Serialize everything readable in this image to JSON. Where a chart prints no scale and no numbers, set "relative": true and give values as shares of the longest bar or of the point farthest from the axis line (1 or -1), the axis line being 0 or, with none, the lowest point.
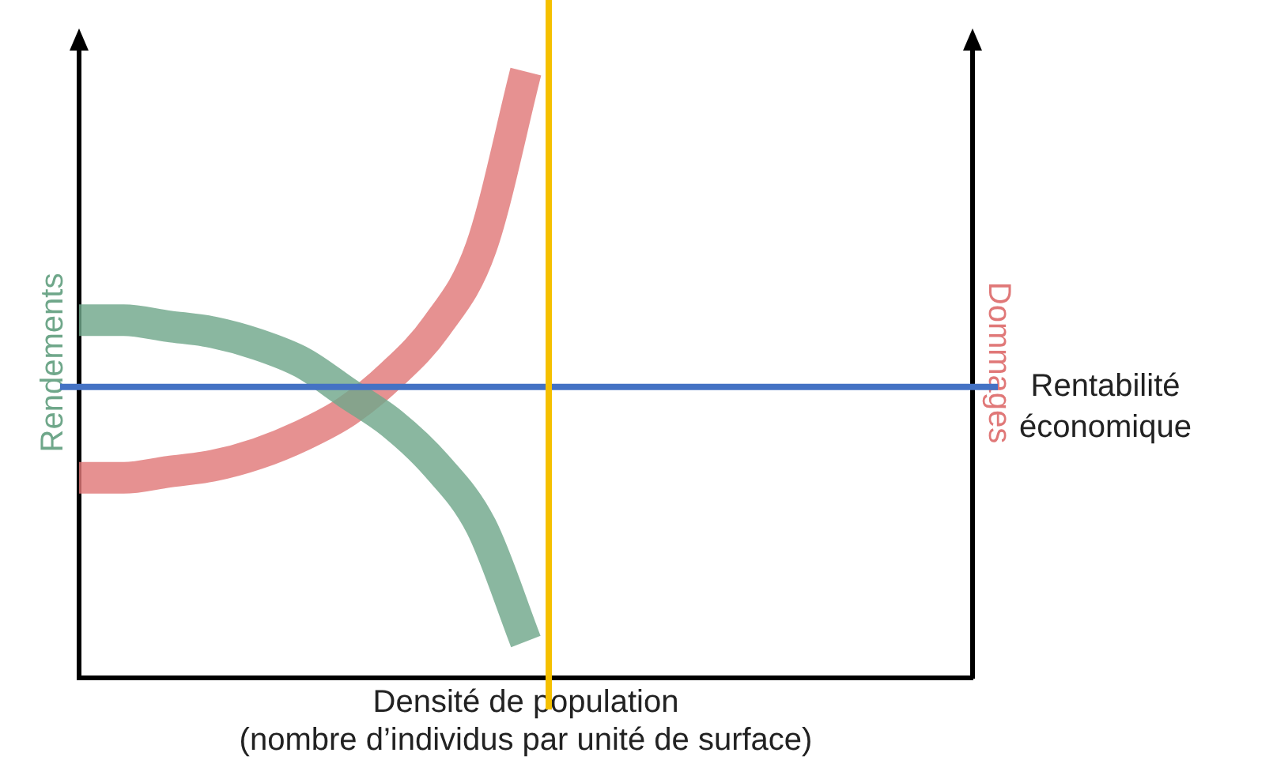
{
  "chart_data": {
    "type": "line",
    "relative": true,
    "xlabel": "Densité de population\n(nombre d’individus par unité de surface)",
    "ylabel": "Rendements",
    "y2label": "Dommages",
    "categories": [
      null,
      null,
      null,
      null,
      null,
      null,
      null,
      null,
      null,
      null,
      null,
      null,
      null,
      null,
      null,
      null,
      null,
      null,
      null,
      null,
      null
    ],
    "series": [
      {
        "color": "#6fa78a",
        "values": [
          0.59,
          0.59,
          0.58,
          0.57,
          0.55,
          0.52,
          0.47,
          0.42,
          0.35,
          0.25,
          0.06,
          null,
          null,
          null,
          null,
          null,
          null,
          null,
          null,
          null,
          null
        ]
      },
      {
        "color": "#e07878",
        "values": [
          0.33,
          0.33,
          0.34,
          0.35,
          0.37,
          0.4,
          0.44,
          0.5,
          0.58,
          0.71,
          1,
          null,
          null,
          null,
          null,
          null,
          null,
          null,
          null,
          null,
          null
        ]
      }
    ],
    "ref_lines": [
      {
        "axis": "y",
        "value": 0.48,
        "label": "Rentabilité\néconomique",
        "color": "#4472c4"
      }
    ],
    "legend": false,
    "grid": false
  }
}
